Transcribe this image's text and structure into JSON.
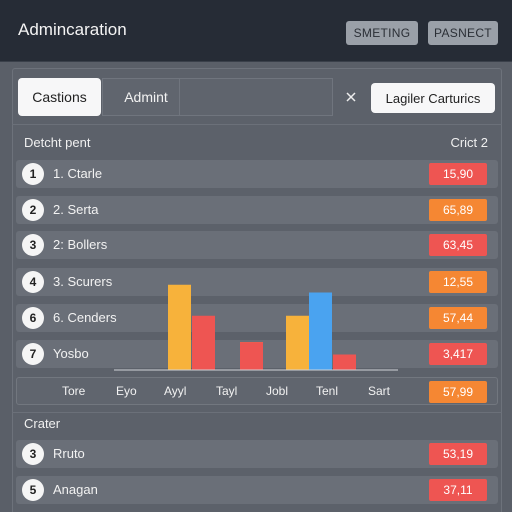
{
  "header": {
    "title": "Adminсaratiоn",
    "buttons": [
      "SMETING",
      "PASNECT"
    ]
  },
  "toolbar": {
    "tabs": [
      "Castions",
      "Admint"
    ],
    "close_icon": "close-icon",
    "action_label": "Lagiler Carturics"
  },
  "list_section": {
    "title": "Detcht pent",
    "right_label": "Crict 2",
    "rows": [
      {
        "num": "1",
        "label": "1. Ctarle",
        "value": "15,90",
        "color": "#ee5552"
      },
      {
        "num": "2",
        "label": "2. Serta",
        "value": "65,89",
        "color": "#f58733"
      },
      {
        "num": "3",
        "label": "2: Bollers",
        "value": "63,45",
        "color": "#ee5552"
      },
      {
        "num": "4",
        "label": "3. Scurers",
        "value": "12,55",
        "color": "#f58733"
      },
      {
        "num": "6",
        "label": "6. Cenders",
        "value": "57,44",
        "color": "#f58733"
      },
      {
        "num": "7",
        "label": "Yosbo",
        "value": "3,417",
        "color": "#ee5552"
      }
    ]
  },
  "chart_data": {
    "type": "bar",
    "categories": [
      "Tore",
      "Eyo",
      "Ayyl",
      "Tayl",
      "Jobl",
      "Tenl",
      "Sart"
    ],
    "series": [
      {
        "values": [
          0,
          0,
          55,
          18,
          0,
          35,
          0
        ],
        "color": "#f7b23b"
      },
      {
        "values": [
          0,
          0,
          35,
          0,
          0,
          0,
          0
        ],
        "color": "#ee5552"
      },
      {
        "values": [
          0,
          0,
          0,
          18,
          0,
          10,
          0
        ],
        "color": "#ee5552"
      },
      {
        "values": [
          0,
          0,
          0,
          0,
          0,
          50,
          0
        ],
        "color": "#4aa3f0"
      }
    ],
    "axis_value": "57,99"
  },
  "lower_section": {
    "title": "Crater",
    "rows": [
      {
        "num": "3",
        "label": "Rruto",
        "value": "53,19",
        "color": "#ee5552"
      },
      {
        "num": "5",
        "label": "Anagan",
        "value": "37,11",
        "color": "#ee5552"
      }
    ]
  }
}
